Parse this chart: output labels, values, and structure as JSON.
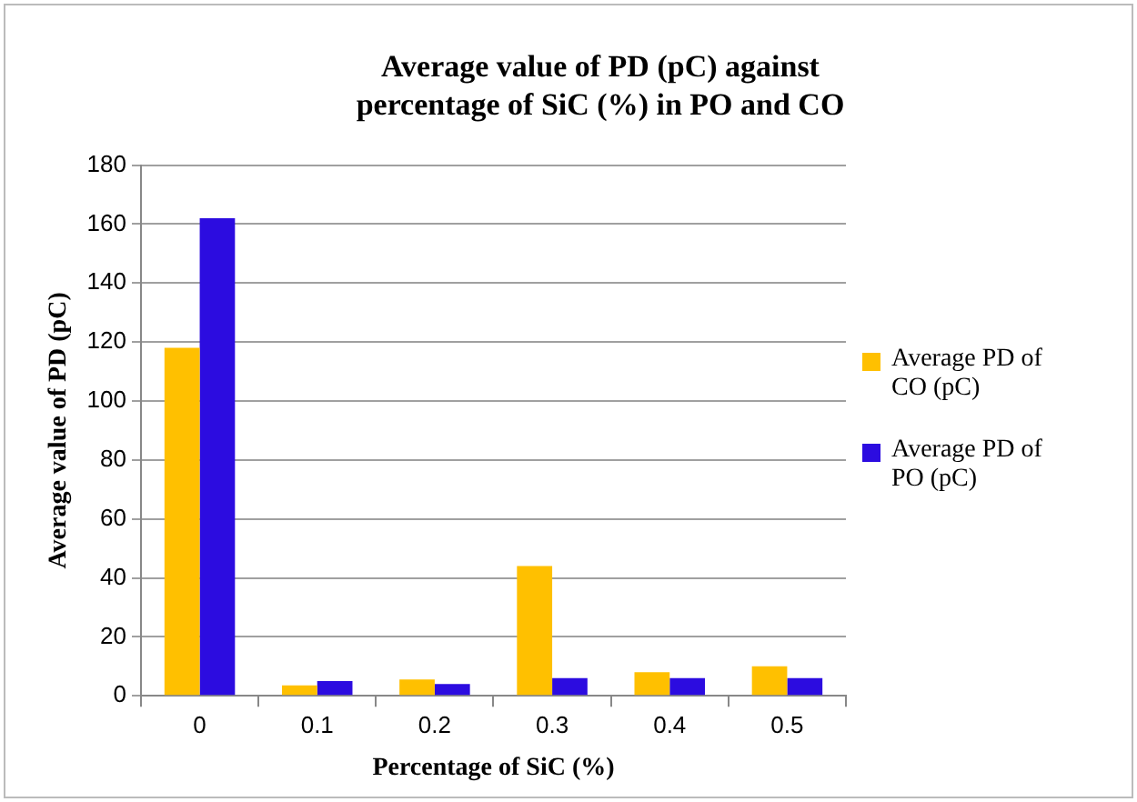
{
  "chart_data": {
    "type": "bar",
    "title": "Average value of PD (pC) against percentage of SiC (%) in PO and CO",
    "xlabel": "Percentage of SiC (%)",
    "ylabel": "Average value of PD (pC)",
    "categories": [
      "0",
      "0.1",
      "0.2",
      "0.3",
      "0.4",
      "0.5"
    ],
    "series": [
      {
        "name": "Average PD of CO (pC)",
        "color": "#ffc000",
        "values": [
          118,
          3.5,
          5.5,
          44,
          8,
          10
        ]
      },
      {
        "name": "Average PD of PO (pC)",
        "color": "#2c0ce0",
        "values": [
          162,
          5,
          4,
          6,
          6,
          6
        ]
      }
    ],
    "ylim": [
      0,
      180
    ],
    "yticks": [
      0,
      20,
      40,
      60,
      80,
      100,
      120,
      140,
      160,
      180
    ],
    "grid": "y",
    "legend": "right"
  }
}
